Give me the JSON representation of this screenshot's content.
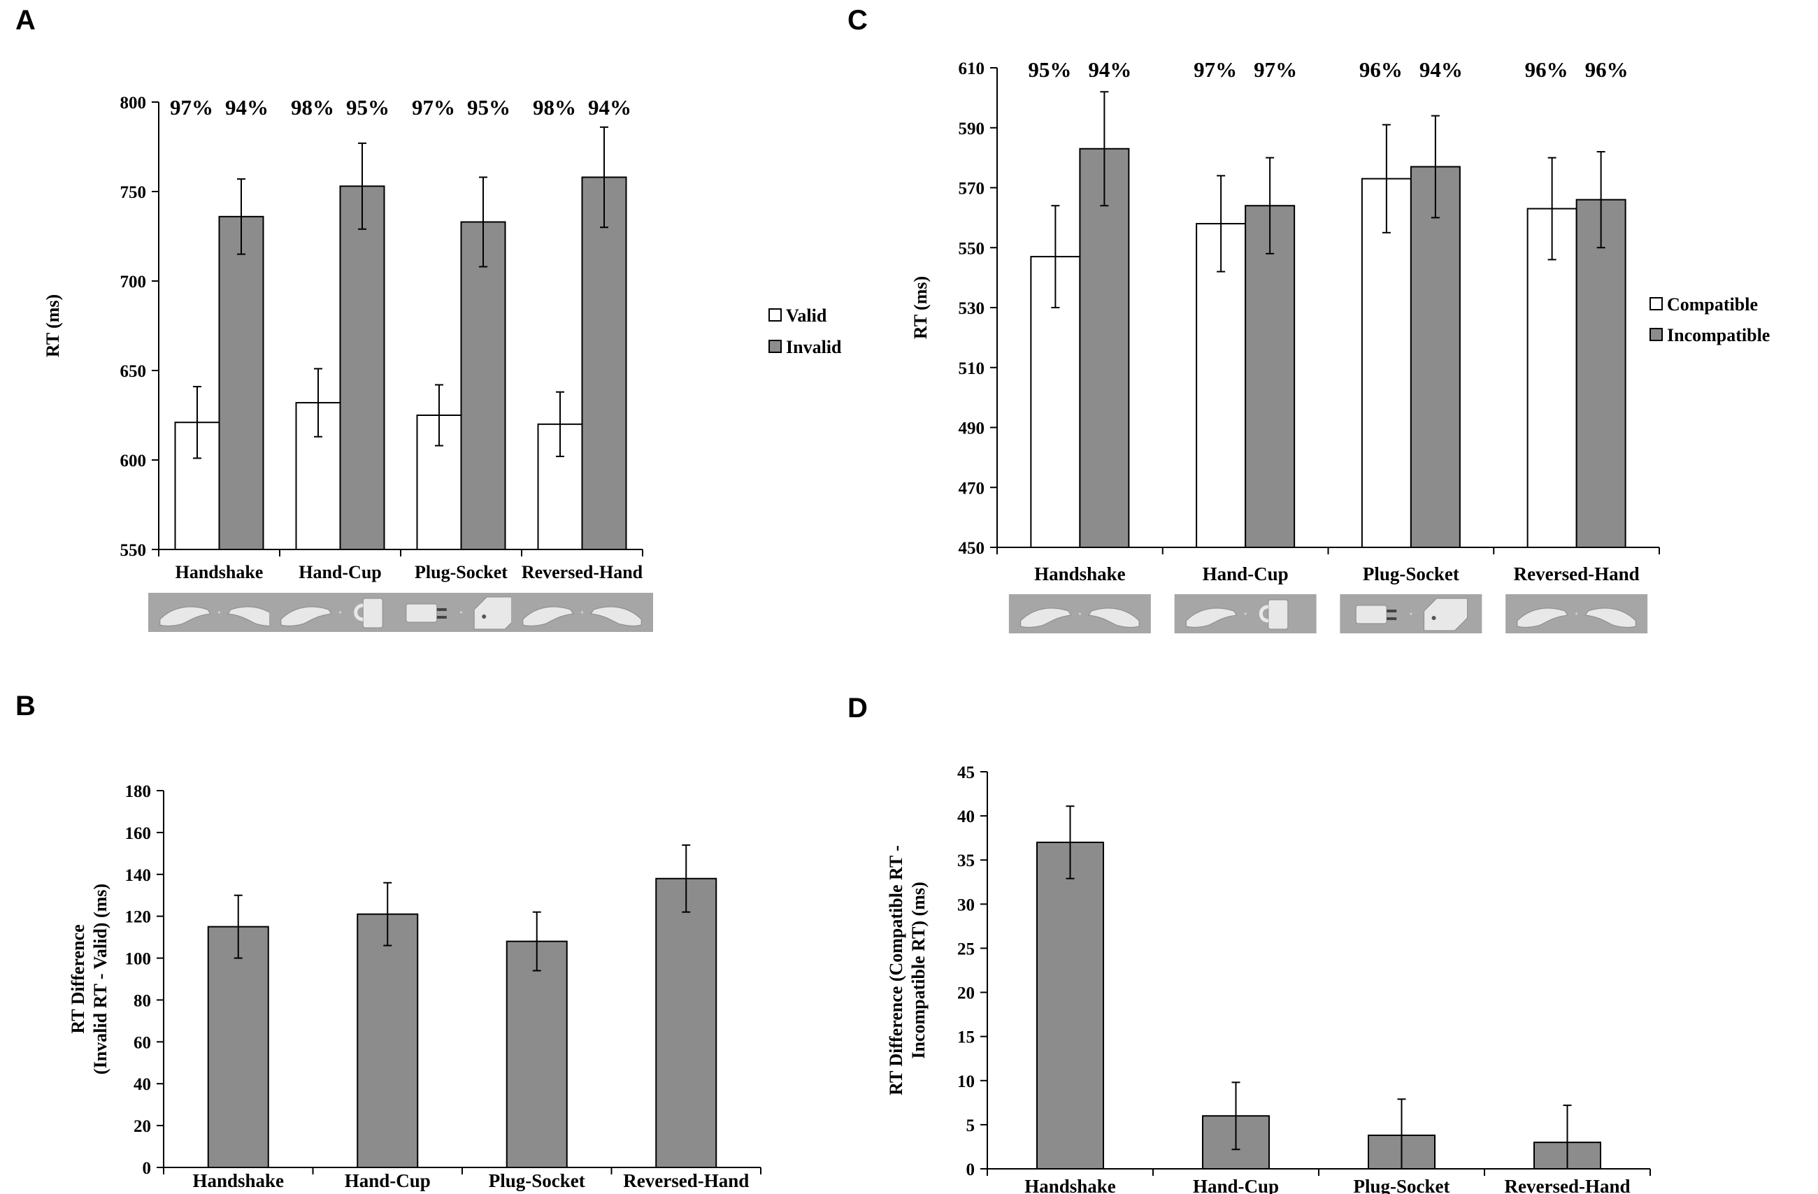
{
  "figure": {
    "panels": [
      "A",
      "B",
      "C",
      "D"
    ]
  },
  "colors": {
    "bar_white": "#ffffff",
    "bar_gray": "#8c8c8c",
    "axis": "#000000",
    "thumb_bg": "#a6a6a6",
    "thumb_fg": "#e8e8e8"
  },
  "chart_data": [
    {
      "panel": "A",
      "type": "bar",
      "title": "",
      "xlabel": "",
      "ylabel": "RT (ms)",
      "ylim": [
        550,
        800
      ],
      "yticks": [
        550,
        600,
        650,
        700,
        750,
        800
      ],
      "categories": [
        "Handshake",
        "Hand-Cup",
        "Plug-Socket",
        "Reversed-Hand"
      ],
      "series": [
        {
          "name": "Valid",
          "color": "#ffffff",
          "values": [
            621,
            632,
            625,
            620
          ],
          "errors": [
            20,
            19,
            17,
            18
          ]
        },
        {
          "name": "Invalid",
          "color": "#8c8c8c",
          "values": [
            736,
            753,
            733,
            758
          ],
          "errors": [
            21,
            24,
            25,
            28
          ]
        }
      ],
      "annotations": [
        [
          "97%",
          "94%"
        ],
        [
          "98%",
          "95%"
        ],
        [
          "97%",
          "95%"
        ],
        [
          "98%",
          "94%"
        ]
      ],
      "legend": "right",
      "thumbnails": [
        "hand-hand",
        "hand-cup",
        "plug-socket",
        "hand-hand"
      ]
    },
    {
      "panel": "B",
      "type": "bar",
      "title": "",
      "xlabel": "",
      "ylabel_lines": [
        "RT Difference",
        "(Invalid  RT - Valid)  (ms)"
      ],
      "ylim": [
        0,
        180
      ],
      "yticks": [
        0,
        20,
        40,
        60,
        80,
        100,
        120,
        140,
        160,
        180
      ],
      "categories": [
        "Handshake",
        "Hand-Cup",
        "Plug-Socket",
        "Reversed-Hand"
      ],
      "series": [
        {
          "name": "RT Difference",
          "color": "#8c8c8c",
          "values": [
            115,
            121,
            108,
            138
          ],
          "errors": [
            15,
            15,
            14,
            16
          ]
        }
      ]
    },
    {
      "panel": "C",
      "type": "bar",
      "title": "",
      "xlabel": "",
      "ylabel": "RT (ms)",
      "ylim": [
        450,
        610
      ],
      "yticks": [
        450,
        470,
        490,
        510,
        530,
        550,
        570,
        590,
        610
      ],
      "categories": [
        "Handshake",
        "Hand-Cup",
        "Plug-Socket",
        "Reversed-Hand"
      ],
      "series": [
        {
          "name": "Compatible",
          "color": "#ffffff",
          "values": [
            547,
            558,
            573,
            563
          ],
          "errors": [
            17,
            16,
            18,
            17
          ]
        },
        {
          "name": "Incompatible",
          "color": "#8c8c8c",
          "values": [
            583,
            564,
            577,
            566
          ],
          "errors": [
            19,
            16,
            17,
            16
          ]
        }
      ],
      "annotations": [
        [
          "95%",
          "94%"
        ],
        [
          "97%",
          "97%"
        ],
        [
          "96%",
          "94%"
        ],
        [
          "96%",
          "96%"
        ]
      ],
      "legend": "right",
      "thumbnails": [
        "hand-hand",
        "hand-cup",
        "plug-socket",
        "hand-hand"
      ]
    },
    {
      "panel": "D",
      "type": "bar",
      "title": "",
      "xlabel": "",
      "ylabel_lines": [
        "RT Difference  (Compatible RT -",
        "Incompatible RT)  (ms)"
      ],
      "ylim": [
        0,
        45
      ],
      "yticks": [
        0,
        5,
        10,
        15,
        20,
        25,
        30,
        35,
        40,
        45
      ],
      "categories": [
        "Handshake",
        "Hand-Cup",
        "Plug-Socket",
        "Reversed-Hand"
      ],
      "series": [
        {
          "name": "RT Difference",
          "color": "#8c8c8c",
          "values": [
            37,
            6,
            3.8,
            3
          ],
          "errors": [
            4.1,
            3.8,
            4.1,
            4.2
          ]
        }
      ]
    }
  ]
}
